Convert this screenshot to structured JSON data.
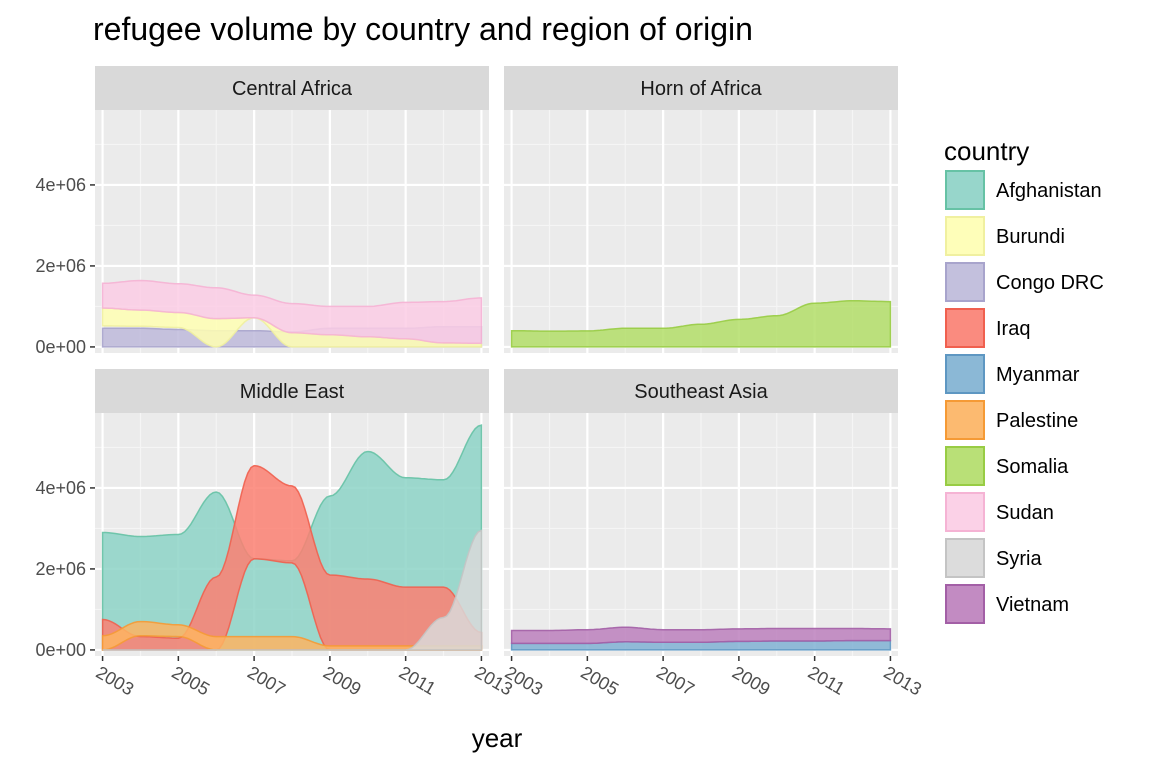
{
  "chart_data": {
    "type": "area",
    "title": "refugee volume by country and region of origin",
    "xlabel": "year",
    "ylabel": "",
    "xlim": [
      2002.8,
      2013.2
    ],
    "ylim": [
      -150000,
      5850000
    ],
    "x_ticks": [
      2003,
      2005,
      2007,
      2009,
      2011,
      2013
    ],
    "x_tick_labels": [
      "2003",
      "2005",
      "2007",
      "2009",
      "2011",
      "2013"
    ],
    "y_ticks": [
      0,
      2000000,
      4000000
    ],
    "y_tick_labels": [
      "0e+00",
      "2e+06",
      "4e+06"
    ],
    "legend": {
      "title": "country",
      "position": "right",
      "entries": [
        {
          "name": "Afghanistan",
          "fill": "#8dd3c7",
          "stroke": "#66c2a5"
        },
        {
          "name": "Burundi",
          "fill": "#ffffb3",
          "stroke": "#f0f0a0"
        },
        {
          "name": "Congo DRC",
          "fill": "#bebada",
          "stroke": "#a8a4cc"
        },
        {
          "name": "Iraq",
          "fill": "#fb8072",
          "stroke": "#f0604f"
        },
        {
          "name": "Myanmar",
          "fill": "#80b1d3",
          "stroke": "#5e97c2"
        },
        {
          "name": "Palestine",
          "fill": "#fdb462",
          "stroke": "#f59a35"
        },
        {
          "name": "Somalia",
          "fill": "#b3de69",
          "stroke": "#98cc44"
        },
        {
          "name": "Sudan",
          "fill": "#fccde5",
          "stroke": "#f5b3d4"
        },
        {
          "name": "Syria",
          "fill": "#d9d9d9",
          "stroke": "#c4c4c4"
        },
        {
          "name": "Vietnam",
          "fill": "#bc80bd",
          "stroke": "#a35fa6"
        }
      ]
    },
    "panels": [
      {
        "name": "Central Africa",
        "series": [
          {
            "name": "Congo DRC",
            "x": [
              2003,
              2004,
              2005,
              2006,
              2007,
              2008,
              2009,
              2010,
              2011,
              2012,
              2013
            ],
            "lower": [
              0,
              0,
              0,
              0,
              0,
              0,
              0,
              0,
              0,
              0,
              0
            ],
            "upper": [
              460000,
              460000,
              430000,
              400000,
              400000,
              370000,
              460000,
              460000,
              460000,
              500000,
              500000
            ]
          },
          {
            "name": "Burundi",
            "x": [
              2003,
              2004,
              2005,
              2006,
              2007,
              2008,
              2009,
              2010,
              2011,
              2012,
              2013
            ],
            "lower": [
              520000,
              510000,
              480000,
              0,
              720000,
              0,
              0,
              0,
              0,
              0,
              0
            ],
            "upper": [
              960000,
              910000,
              850000,
              700000,
              720000,
              350000,
              300000,
              250000,
              200000,
              100000,
              90000
            ]
          },
          {
            "name": "Sudan",
            "x": [
              2003,
              2004,
              2005,
              2006,
              2007,
              2008,
              2009,
              2010,
              2011,
              2012,
              2013
            ],
            "lower": [
              960000,
              910000,
              850000,
              700000,
              720000,
              350000,
              300000,
              250000,
              200000,
              100000,
              90000
            ],
            "upper": [
              1570000,
              1640000,
              1560000,
              1460000,
              1280000,
              1070000,
              1000000,
              1000000,
              1100000,
              1120000,
              1210000
            ]
          }
        ]
      },
      {
        "name": "Horn of Africa",
        "series": [
          {
            "name": "Somalia",
            "x": [
              2003,
              2004,
              2005,
              2006,
              2007,
              2008,
              2009,
              2010,
              2011,
              2012,
              2013
            ],
            "lower": [
              0,
              0,
              0,
              0,
              0,
              0,
              0,
              0,
              0,
              0,
              0
            ],
            "upper": [
              400000,
              390000,
              395000,
              460000,
              460000,
              560000,
              680000,
              770000,
              1080000,
              1140000,
              1120000
            ]
          }
        ]
      },
      {
        "name": "Middle East",
        "series": [
          {
            "name": "Afghanistan",
            "x": [
              2003,
              2004,
              2005,
              2006,
              2007,
              2008,
              2009,
              2010,
              2011,
              2012,
              2013
            ],
            "lower": [
              0,
              0,
              0,
              0,
              0,
              0,
              0,
              0,
              0,
              0,
              0
            ],
            "upper": [
              2900000,
              2800000,
              2850000,
              3900000,
              2250000,
              2200000,
              3800000,
              4900000,
              4250000,
              4200000,
              5550000
            ]
          },
          {
            "name": "Iraq",
            "x": [
              2003,
              2004,
              2005,
              2006,
              2007,
              2008,
              2009,
              2010,
              2011,
              2012,
              2013
            ],
            "lower": [
              0,
              0,
              0,
              0,
              2250000,
              2150000,
              0,
              0,
              0,
              0,
              0
            ],
            "upper": [
              750000,
              330000,
              290000,
              1800000,
              4550000,
              4050000,
              1850000,
              1750000,
              1550000,
              1550000,
              430000
            ]
          },
          {
            "name": "Palestine",
            "x": [
              2003,
              2004,
              2005,
              2006,
              2007,
              2008,
              2009,
              2010,
              2011,
              2012,
              2013
            ],
            "lower": [
              0,
              350000,
              330000,
              0,
              0,
              0,
              0,
              0,
              0,
              0,
              0
            ],
            "upper": [
              350000,
              700000,
              620000,
              330000,
              330000,
              330000,
              100000,
              100000,
              100000,
              100000,
              100000
            ]
          },
          {
            "name": "Syria",
            "x": [
              2003,
              2004,
              2005,
              2006,
              2007,
              2008,
              2009,
              2010,
              2011,
              2012,
              2013
            ],
            "lower": [
              0,
              0,
              0,
              0,
              0,
              0,
              0,
              0,
              0,
              0,
              0
            ],
            "upper": [
              0,
              0,
              0,
              0,
              0,
              0,
              0,
              0,
              0,
              800000,
              2950000
            ]
          }
        ]
      },
      {
        "name": "Southeast Asia",
        "series": [
          {
            "name": "Myanmar",
            "x": [
              2003,
              2004,
              2005,
              2006,
              2007,
              2008,
              2009,
              2010,
              2011,
              2012,
              2013
            ],
            "lower": [
              0,
              0,
              0,
              0,
              0,
              0,
              0,
              0,
              0,
              0,
              0
            ],
            "upper": [
              160000,
              160000,
              160000,
              200000,
              190000,
              190000,
              210000,
              220000,
              220000,
              230000,
              230000
            ]
          },
          {
            "name": "Vietnam",
            "x": [
              2003,
              2004,
              2005,
              2006,
              2007,
              2008,
              2009,
              2010,
              2011,
              2012,
              2013
            ],
            "lower": [
              160000,
              160000,
              160000,
              200000,
              190000,
              190000,
              210000,
              220000,
              220000,
              230000,
              230000
            ],
            "upper": [
              480000,
              480000,
              500000,
              560000,
              500000,
              500000,
              520000,
              530000,
              530000,
              530000,
              520000
            ]
          }
        ]
      }
    ]
  }
}
